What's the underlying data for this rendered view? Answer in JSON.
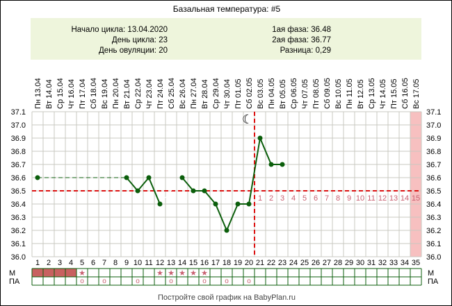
{
  "title": "Базальная температура: #5",
  "info": {
    "cycle_start": "Начало цикла: 13.04.2020",
    "cycle_day": "День цикла: 23",
    "ovulation_day": "День овуляции: 20",
    "phase1": "1ая фаза: 36.48",
    "phase2": "2ая фаза: 36.77",
    "difference": "Разница: 0,29"
  },
  "footer": "Постройте свой график на BabyPlan.ru",
  "colors": {
    "line": "#0b5e0b",
    "coverline": "#dd1111",
    "grid": "#c8c8c0",
    "info_bg": "#eef5dc",
    "period": "#c86060",
    "marks": "#c86070",
    "highlight": "#f7c0c0"
  },
  "chart_data": {
    "type": "line",
    "ylim": [
      36.0,
      37.1
    ],
    "yticks": [
      "37.1",
      "37.0",
      "36.9",
      "36.8",
      "36.7",
      "36.6",
      "36.5",
      "36.4",
      "36.3",
      "36.2",
      "36.1",
      "36.0"
    ],
    "days": [
      "1",
      "2",
      "3",
      "4",
      "5",
      "6",
      "7",
      "8",
      "9",
      "10",
      "11",
      "12",
      "13",
      "14",
      "15",
      "16",
      "17",
      "18",
      "19",
      "20",
      "21",
      "22",
      "23",
      "24",
      "25",
      "26",
      "27",
      "28",
      "29",
      "30",
      "31",
      "32",
      "33",
      "34",
      "35"
    ],
    "dates": [
      "Пн 13.04",
      "Вт 14.04",
      "Ср 15.04",
      "Чт 16.04",
      "Пт 17.04",
      "Сб 18.04",
      "Вс 19.04",
      "Пн 20.04",
      "Вт 21.04",
      "Ср 22.04",
      "Чт 23.04",
      "Пт 24.04",
      "Сб 25.04",
      "Вс 26.04",
      "Пн 27.04",
      "Вт 28.04",
      "Ср 29.04",
      "Чт 30.04",
      "Пт 01.05",
      "Сб 02.05",
      "Вс 03.05",
      "Пн 04.05",
      "Вт 05.05",
      "Ср 06.05",
      "Чт 07.05",
      "Пт 08.05",
      "Сб 09.05",
      "Вс 10.05",
      "Пн 11.05",
      "Вт 12.05",
      "Ср 13.05",
      "Чт 14.05",
      "Пт 15.05",
      "Сб 16.05",
      "Вс 17.05"
    ],
    "points": [
      [
        1,
        36.6
      ],
      [
        9,
        36.6
      ],
      [
        10,
        36.5
      ],
      [
        11,
        36.6
      ],
      [
        12,
        36.4
      ],
      [
        14,
        36.6
      ],
      [
        15,
        36.5
      ],
      [
        16,
        36.5
      ],
      [
        17,
        36.4
      ],
      [
        18,
        36.2
      ],
      [
        19,
        36.4
      ],
      [
        20,
        36.4
      ],
      [
        21,
        36.9
      ],
      [
        22,
        36.7
      ],
      [
        23,
        36.7
      ]
    ],
    "coverline": 36.5,
    "ovulation_day": 20,
    "luteal_labels": [
      "1",
      "2",
      "3",
      "4",
      "5",
      "6",
      "7",
      "8",
      "9",
      "10",
      "11",
      "12",
      "13",
      "14",
      "15"
    ],
    "highlight_day": 35,
    "rows": {
      "m_label": "М",
      "pa_label": "ПА",
      "period_days": [
        1,
        2,
        3,
        4
      ],
      "m_star_days": [
        5,
        12,
        13,
        14,
        15,
        16
      ],
      "pa_days": [
        5,
        7,
        10,
        13,
        16,
        18,
        20
      ],
      "star_symbol": "★",
      "circle_symbol": "o"
    },
    "moon_icon": "☾"
  }
}
